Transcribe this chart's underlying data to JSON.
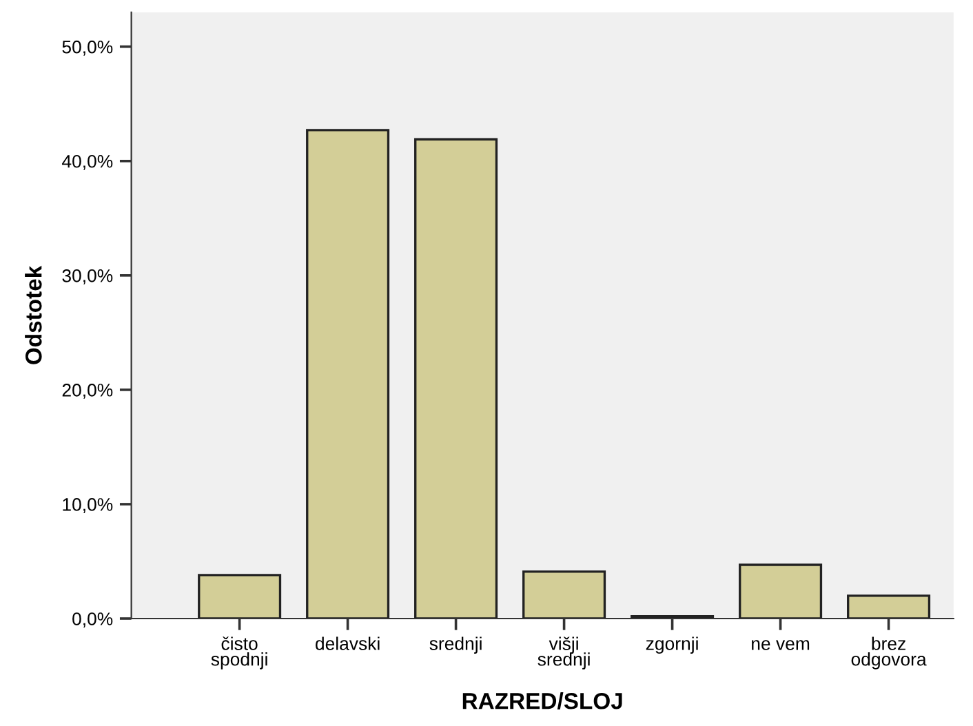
{
  "chart_data": {
    "type": "bar",
    "xlabel": "RAZRED/SLOJ",
    "ylabel": "Odstotek",
    "categories": [
      "čisto\nspodnji",
      "delavski",
      "srednji",
      "višji\nsrednji",
      "zgornji",
      "ne vem",
      "brez\nodgovora"
    ],
    "values": [
      3.8,
      42.7,
      41.9,
      4.1,
      0.2,
      4.7,
      2.0
    ],
    "color": "#d3ce97",
    "ylim": [
      0,
      53
    ],
    "yticks": [
      {
        "value": 0,
        "label": "0,0%"
      },
      {
        "value": 10,
        "label": "10,0%"
      },
      {
        "value": 20,
        "label": "20,0%"
      },
      {
        "value": 30,
        "label": "30,0%"
      },
      {
        "value": 40,
        "label": "40,0%"
      },
      {
        "value": 50,
        "label": "50,0%"
      }
    ],
    "grid": false
  }
}
